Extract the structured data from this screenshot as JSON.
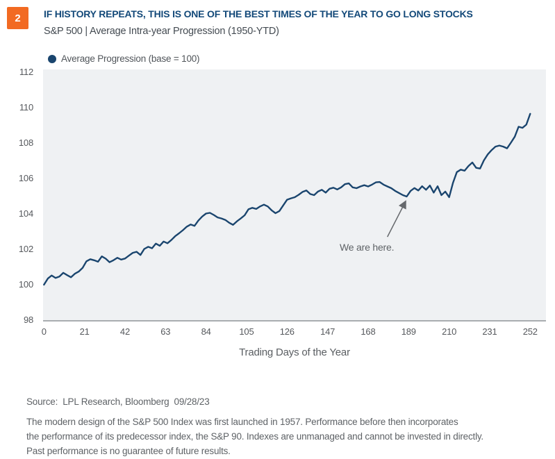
{
  "header": {
    "badge": "2",
    "badge_color": "#f26a22",
    "title": "IF HISTORY REPEATS, THIS IS ONE OF THE BEST TIMES OF THE YEAR TO GO LONG STOCKS",
    "title_color": "#134979",
    "subtitle": "S&P 500 | Average Intra-year Progression (1950-YTD)",
    "subtitle_color": "#444b52"
  },
  "legend": {
    "marker_color": "#1a456e",
    "label": "Average Progression (base = 100)"
  },
  "chart_data": {
    "type": "line",
    "title": "S&P 500 | Average Intra-year Progression (1950-YTD)",
    "xlabel": "Trading Days of the Year",
    "ylabel": "",
    "xlim": [
      0,
      252
    ],
    "ylim": [
      98,
      112
    ],
    "xticks": [
      0,
      21,
      42,
      63,
      84,
      105,
      126,
      147,
      168,
      189,
      210,
      231,
      252
    ],
    "yticks": [
      112,
      110,
      108,
      106,
      104,
      102,
      100,
      98
    ],
    "grid": false,
    "legend_position": "top-left",
    "plot_bg": "#eff1f3",
    "line_color": "#1a456e",
    "annotation": {
      "text": "We are here.",
      "arrow_tip": [
        187.5,
        104.72
      ],
      "arrow_tail": [
        178.0,
        102.7
      ],
      "arrow_color": "#66696d"
    },
    "series": [
      {
        "name": "Average Progression (base = 100)",
        "points": [
          [
            0,
            100.0
          ],
          [
            2,
            100.35
          ],
          [
            4,
            100.52
          ],
          [
            6,
            100.38
          ],
          [
            8,
            100.46
          ],
          [
            10,
            100.67
          ],
          [
            12,
            100.54
          ],
          [
            14,
            100.42
          ],
          [
            16,
            100.62
          ],
          [
            18,
            100.74
          ],
          [
            20,
            100.95
          ],
          [
            22,
            101.32
          ],
          [
            24,
            101.44
          ],
          [
            26,
            101.38
          ],
          [
            28,
            101.3
          ],
          [
            30,
            101.6
          ],
          [
            32,
            101.47
          ],
          [
            34,
            101.27
          ],
          [
            36,
            101.38
          ],
          [
            38,
            101.52
          ],
          [
            40,
            101.42
          ],
          [
            42,
            101.48
          ],
          [
            44,
            101.64
          ],
          [
            46,
            101.8
          ],
          [
            48,
            101.86
          ],
          [
            50,
            101.68
          ],
          [
            52,
            102.02
          ],
          [
            54,
            102.14
          ],
          [
            56,
            102.06
          ],
          [
            58,
            102.32
          ],
          [
            60,
            102.2
          ],
          [
            62,
            102.44
          ],
          [
            64,
            102.34
          ],
          [
            66,
            102.52
          ],
          [
            68,
            102.74
          ],
          [
            70,
            102.9
          ],
          [
            72,
            103.08
          ],
          [
            74,
            103.28
          ],
          [
            76,
            103.4
          ],
          [
            78,
            103.32
          ],
          [
            80,
            103.62
          ],
          [
            82,
            103.85
          ],
          [
            84,
            104.02
          ],
          [
            86,
            104.06
          ],
          [
            88,
            103.94
          ],
          [
            90,
            103.8
          ],
          [
            92,
            103.74
          ],
          [
            94,
            103.66
          ],
          [
            96,
            103.5
          ],
          [
            98,
            103.38
          ],
          [
            100,
            103.58
          ],
          [
            102,
            103.74
          ],
          [
            104,
            103.92
          ],
          [
            106,
            104.26
          ],
          [
            108,
            104.34
          ],
          [
            110,
            104.28
          ],
          [
            112,
            104.42
          ],
          [
            114,
            104.52
          ],
          [
            116,
            104.42
          ],
          [
            118,
            104.2
          ],
          [
            120,
            104.04
          ],
          [
            122,
            104.16
          ],
          [
            124,
            104.48
          ],
          [
            126,
            104.8
          ],
          [
            128,
            104.88
          ],
          [
            130,
            104.94
          ],
          [
            132,
            105.08
          ],
          [
            134,
            105.24
          ],
          [
            136,
            105.32
          ],
          [
            138,
            105.12
          ],
          [
            140,
            105.06
          ],
          [
            142,
            105.26
          ],
          [
            144,
            105.36
          ],
          [
            146,
            105.2
          ],
          [
            148,
            105.42
          ],
          [
            150,
            105.48
          ],
          [
            152,
            105.38
          ],
          [
            154,
            105.5
          ],
          [
            156,
            105.68
          ],
          [
            158,
            105.72
          ],
          [
            160,
            105.5
          ],
          [
            162,
            105.45
          ],
          [
            164,
            105.55
          ],
          [
            166,
            105.62
          ],
          [
            168,
            105.55
          ],
          [
            170,
            105.65
          ],
          [
            172,
            105.78
          ],
          [
            174,
            105.8
          ],
          [
            176,
            105.65
          ],
          [
            178,
            105.55
          ],
          [
            180,
            105.45
          ],
          [
            182,
            105.3
          ],
          [
            184,
            105.18
          ],
          [
            186,
            105.06
          ],
          [
            188,
            104.98
          ],
          [
            190,
            105.3
          ],
          [
            192,
            105.46
          ],
          [
            194,
            105.32
          ],
          [
            196,
            105.56
          ],
          [
            198,
            105.36
          ],
          [
            200,
            105.6
          ],
          [
            202,
            105.2
          ],
          [
            204,
            105.56
          ],
          [
            206,
            105.06
          ],
          [
            208,
            105.26
          ],
          [
            210,
            104.94
          ],
          [
            212,
            105.76
          ],
          [
            214,
            106.36
          ],
          [
            216,
            106.5
          ],
          [
            218,
            106.44
          ],
          [
            220,
            106.7
          ],
          [
            222,
            106.9
          ],
          [
            224,
            106.6
          ],
          [
            226,
            106.56
          ],
          [
            228,
            107.02
          ],
          [
            230,
            107.36
          ],
          [
            232,
            107.6
          ],
          [
            234,
            107.8
          ],
          [
            236,
            107.86
          ],
          [
            238,
            107.8
          ],
          [
            240,
            107.7
          ],
          [
            242,
            108.02
          ],
          [
            244,
            108.36
          ],
          [
            246,
            108.92
          ],
          [
            248,
            108.86
          ],
          [
            250,
            109.04
          ],
          [
            252,
            109.65
          ]
        ]
      }
    ]
  },
  "footer": {
    "source": "Source:  LPL Research, Bloomberg  09/28/23",
    "disclaimer_lines": [
      "The modern design of the S&P 500 Index was first launched in 1957. Performance before then incorporates",
      "the performance of its predecessor index, the S&P 90. Indexes are unmanaged and cannot be invested in directly.",
      "Past performance is no guarantee of future results."
    ]
  }
}
